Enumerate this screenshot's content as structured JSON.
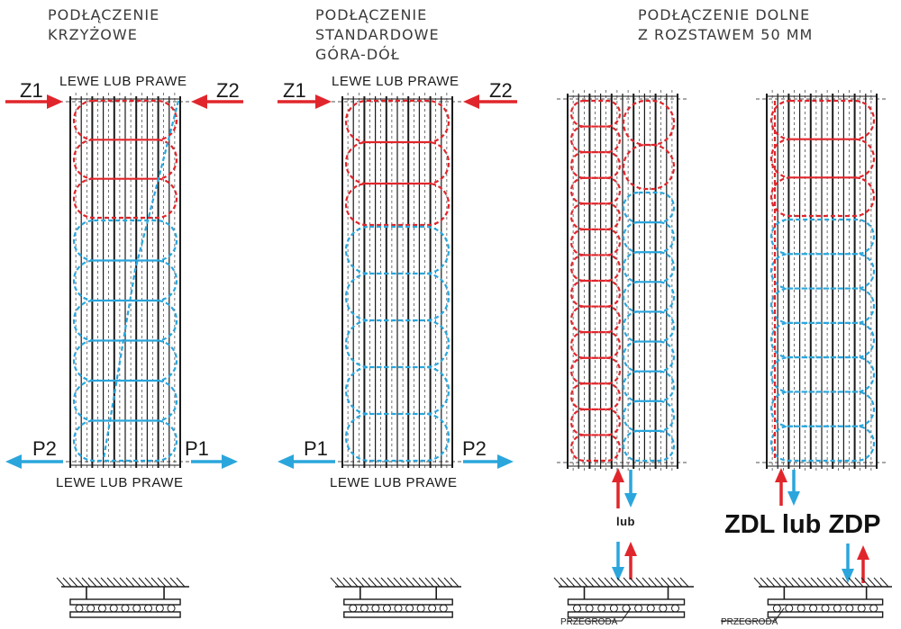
{
  "colors": {
    "supply": "#e0262c",
    "return": "#2ba6dc",
    "line": "#1a1a1a"
  },
  "panels": [
    {
      "title": "PODŁĄCZENIE\nKRZYŻOWE",
      "top_label": "LEWE LUB PRAWE",
      "bottom_label": "LEWE LUB PRAWE",
      "arrows": {
        "top_left": "Z1",
        "top_right": "Z2",
        "bottom_left": "P2",
        "bottom_right": "P1"
      }
    },
    {
      "title": "PODŁĄCZENIE\nSTANDARDOWE\nGÓRA-DÓŁ",
      "top_label": "LEWE LUB PRAWE",
      "bottom_label": "LEWE LUB PRAWE",
      "arrows": {
        "top_left": "Z1",
        "top_right": "Z2",
        "bottom_left": "P1",
        "bottom_right": "P2"
      }
    },
    {
      "title": "PODŁĄCZENIE DOLNE\nZ ROZSTAWEM 50 MM",
      "or_label": "lub",
      "partition_label": "PRZEGRODA"
    },
    {
      "big_label": "ZDL lub ZDP",
      "partition_label": "PRZEGRODA"
    }
  ]
}
